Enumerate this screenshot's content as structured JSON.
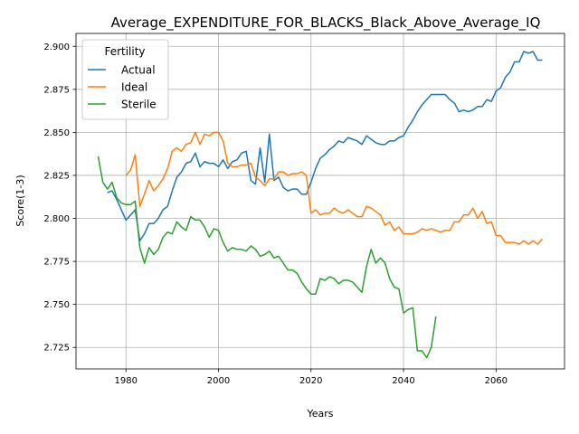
{
  "chart_data": {
    "type": "line",
    "title": "Average_EXPENDITURE_FOR_BLACKS_Black_Above_Average_IQ",
    "xlabel": "Years",
    "ylabel": "Score(1-3)",
    "xlim": [
      1969.2,
      2074.8
    ],
    "ylim": [
      2.7125,
      2.9075
    ],
    "x_ticks": [
      "1980",
      "2000",
      "2020",
      "2040",
      "2060"
    ],
    "x_tick_values": [
      1980,
      2000,
      2020,
      2040,
      2060
    ],
    "y_ticks": [
      "2.725",
      "2.750",
      "2.775",
      "2.800",
      "2.825",
      "2.850",
      "2.875",
      "2.900"
    ],
    "y_tick_values": [
      2.725,
      2.75,
      2.775,
      2.8,
      2.825,
      2.85,
      2.875,
      2.9
    ],
    "grid": true,
    "legend": {
      "title": "Fertility",
      "position": "upper-left"
    },
    "series": [
      {
        "name": "Actual",
        "color": "#1f77b4",
        "points": [
          [
            1976,
            2.815
          ],
          [
            1977,
            2.816
          ],
          [
            1978,
            2.811
          ],
          [
            1979,
            2.805
          ],
          [
            1980,
            2.799
          ],
          [
            1981,
            2.802
          ],
          [
            1982,
            2.805
          ],
          [
            1983,
            2.787
          ],
          [
            1984,
            2.791
          ],
          [
            1985,
            2.797
          ],
          [
            1986,
            2.797
          ],
          [
            1987,
            2.8
          ],
          [
            1988,
            2.805
          ],
          [
            1989,
            2.807
          ],
          [
            1990,
            2.816
          ],
          [
            1991,
            2.824
          ],
          [
            1992,
            2.827
          ],
          [
            1993,
            2.832
          ],
          [
            1994,
            2.833
          ],
          [
            1995,
            2.838
          ],
          [
            1996,
            2.83
          ],
          [
            1997,
            2.833
          ],
          [
            1998,
            2.832
          ],
          [
            1999,
            2.832
          ],
          [
            2000,
            2.83
          ],
          [
            2001,
            2.834
          ],
          [
            2002,
            2.829
          ],
          [
            2003,
            2.833
          ],
          [
            2004,
            2.834
          ],
          [
            2005,
            2.838
          ],
          [
            2006,
            2.839
          ],
          [
            2007,
            2.822
          ],
          [
            2008,
            2.82
          ],
          [
            2009,
            2.841
          ],
          [
            2010,
            2.821
          ],
          [
            2011,
            2.849
          ],
          [
            2012,
            2.822
          ],
          [
            2013,
            2.824
          ],
          [
            2014,
            2.818
          ],
          [
            2015,
            2.816
          ],
          [
            2016,
            2.817
          ],
          [
            2017,
            2.817
          ],
          [
            2018,
            2.814
          ],
          [
            2019,
            2.814
          ],
          [
            2020,
            2.821
          ],
          [
            2021,
            2.829
          ],
          [
            2022,
            2.835
          ],
          [
            2023,
            2.837
          ],
          [
            2024,
            2.84
          ],
          [
            2025,
            2.842
          ],
          [
            2026,
            2.845
          ],
          [
            2027,
            2.844
          ],
          [
            2028,
            2.847
          ],
          [
            2029,
            2.846
          ],
          [
            2030,
            2.845
          ],
          [
            2031,
            2.843
          ],
          [
            2032,
            2.848
          ],
          [
            2033,
            2.846
          ],
          [
            2034,
            2.844
          ],
          [
            2035,
            2.843
          ],
          [
            2036,
            2.843
          ],
          [
            2037,
            2.845
          ],
          [
            2038,
            2.845
          ],
          [
            2039,
            2.847
          ],
          [
            2040,
            2.848
          ],
          [
            2041,
            2.853
          ],
          [
            2042,
            2.857
          ],
          [
            2043,
            2.862
          ],
          [
            2044,
            2.866
          ],
          [
            2045,
            2.869
          ],
          [
            2046,
            2.872
          ],
          [
            2047,
            2.872
          ],
          [
            2048,
            2.872
          ],
          [
            2049,
            2.872
          ],
          [
            2050,
            2.869
          ],
          [
            2051,
            2.867
          ],
          [
            2052,
            2.862
          ],
          [
            2053,
            2.863
          ],
          [
            2054,
            2.862
          ],
          [
            2055,
            2.863
          ],
          [
            2056,
            2.865
          ],
          [
            2057,
            2.865
          ],
          [
            2058,
            2.869
          ],
          [
            2059,
            2.868
          ],
          [
            2060,
            2.874
          ],
          [
            2061,
            2.876
          ],
          [
            2062,
            2.882
          ],
          [
            2063,
            2.885
          ],
          [
            2064,
            2.891
          ],
          [
            2065,
            2.891
          ],
          [
            2066,
            2.897
          ],
          [
            2067,
            2.896
          ],
          [
            2068,
            2.897
          ],
          [
            2069,
            2.892
          ],
          [
            2070,
            2.892
          ]
        ]
      },
      {
        "name": "Ideal",
        "color": "#ff7f0e",
        "points": [
          [
            1980,
            2.825
          ],
          [
            1981,
            2.828
          ],
          [
            1982,
            2.837
          ],
          [
            1983,
            2.807
          ],
          [
            1984,
            2.814
          ],
          [
            1985,
            2.822
          ],
          [
            1986,
            2.816
          ],
          [
            1987,
            2.819
          ],
          [
            1988,
            2.823
          ],
          [
            1989,
            2.829
          ],
          [
            1990,
            2.839
          ],
          [
            1991,
            2.841
          ],
          [
            1992,
            2.839
          ],
          [
            1993,
            2.843
          ],
          [
            1994,
            2.844
          ],
          [
            1995,
            2.85
          ],
          [
            1996,
            2.843
          ],
          [
            1997,
            2.849
          ],
          [
            1998,
            2.848
          ],
          [
            1999,
            2.85
          ],
          [
            2000,
            2.85
          ],
          [
            2001,
            2.845
          ],
          [
            2002,
            2.832
          ],
          [
            2003,
            2.83
          ],
          [
            2004,
            2.83
          ],
          [
            2005,
            2.831
          ],
          [
            2006,
            2.831
          ],
          [
            2007,
            2.832
          ],
          [
            2008,
            2.824
          ],
          [
            2009,
            2.822
          ],
          [
            2010,
            2.819
          ],
          [
            2011,
            2.823
          ],
          [
            2012,
            2.823
          ],
          [
            2013,
            2.827
          ],
          [
            2014,
            2.827
          ],
          [
            2015,
            2.825
          ],
          [
            2016,
            2.826
          ],
          [
            2017,
            2.826
          ],
          [
            2018,
            2.827
          ],
          [
            2019,
            2.825
          ],
          [
            2020,
            2.803
          ],
          [
            2021,
            2.805
          ],
          [
            2022,
            2.802
          ],
          [
            2023,
            2.803
          ],
          [
            2024,
            2.803
          ],
          [
            2025,
            2.806
          ],
          [
            2026,
            2.804
          ],
          [
            2027,
            2.803
          ],
          [
            2028,
            2.805
          ],
          [
            2029,
            2.803
          ],
          [
            2030,
            2.801
          ],
          [
            2031,
            2.801
          ],
          [
            2032,
            2.807
          ],
          [
            2033,
            2.806
          ],
          [
            2034,
            2.804
          ],
          [
            2035,
            2.802
          ],
          [
            2036,
            2.796
          ],
          [
            2037,
            2.798
          ],
          [
            2038,
            2.793
          ],
          [
            2039,
            2.795
          ],
          [
            2040,
            2.791
          ],
          [
            2041,
            2.791
          ],
          [
            2042,
            2.791
          ],
          [
            2043,
            2.792
          ],
          [
            2044,
            2.794
          ],
          [
            2045,
            2.793
          ],
          [
            2046,
            2.794
          ],
          [
            2047,
            2.793
          ],
          [
            2048,
            2.792
          ],
          [
            2049,
            2.793
          ],
          [
            2050,
            2.793
          ],
          [
            2051,
            2.798
          ],
          [
            2052,
            2.798
          ],
          [
            2053,
            2.802
          ],
          [
            2054,
            2.802
          ],
          [
            2055,
            2.806
          ],
          [
            2056,
            2.8
          ],
          [
            2057,
            2.804
          ],
          [
            2058,
            2.797
          ],
          [
            2059,
            2.798
          ],
          [
            2060,
            2.79
          ],
          [
            2061,
            2.79
          ],
          [
            2062,
            2.786
          ],
          [
            2063,
            2.786
          ],
          [
            2064,
            2.786
          ],
          [
            2065,
            2.785
          ],
          [
            2066,
            2.787
          ],
          [
            2067,
            2.785
          ],
          [
            2068,
            2.787
          ],
          [
            2069,
            2.785
          ],
          [
            2070,
            2.788
          ]
        ]
      },
      {
        "name": "Sterile",
        "color": "#2ca02c",
        "points": [
          [
            1974,
            2.836
          ],
          [
            1975,
            2.821
          ],
          [
            1976,
            2.817
          ],
          [
            1977,
            2.821
          ],
          [
            1978,
            2.812
          ],
          [
            1979,
            2.809
          ],
          [
            1980,
            2.808
          ],
          [
            1981,
            2.808
          ],
          [
            1982,
            2.81
          ],
          [
            1983,
            2.783
          ],
          [
            1984,
            2.774
          ],
          [
            1985,
            2.783
          ],
          [
            1986,
            2.779
          ],
          [
            1987,
            2.782
          ],
          [
            1988,
            2.789
          ],
          [
            1989,
            2.792
          ],
          [
            1990,
            2.791
          ],
          [
            1991,
            2.798
          ],
          [
            1992,
            2.795
          ],
          [
            1993,
            2.793
          ],
          [
            1994,
            2.801
          ],
          [
            1995,
            2.799
          ],
          [
            1996,
            2.799
          ],
          [
            1997,
            2.795
          ],
          [
            1998,
            2.789
          ],
          [
            1999,
            2.794
          ],
          [
            2000,
            2.793
          ],
          [
            2001,
            2.786
          ],
          [
            2002,
            2.781
          ],
          [
            2003,
            2.783
          ],
          [
            2004,
            2.782
          ],
          [
            2005,
            2.782
          ],
          [
            2006,
            2.781
          ],
          [
            2007,
            2.784
          ],
          [
            2008,
            2.782
          ],
          [
            2009,
            2.778
          ],
          [
            2010,
            2.779
          ],
          [
            2011,
            2.781
          ],
          [
            2012,
            2.777
          ],
          [
            2013,
            2.778
          ],
          [
            2014,
            2.774
          ],
          [
            2015,
            2.77
          ],
          [
            2016,
            2.77
          ],
          [
            2017,
            2.768
          ],
          [
            2018,
            2.763
          ],
          [
            2019,
            2.759
          ],
          [
            2020,
            2.756
          ],
          [
            2021,
            2.756
          ],
          [
            2022,
            2.765
          ],
          [
            2023,
            2.764
          ],
          [
            2024,
            2.766
          ],
          [
            2025,
            2.765
          ],
          [
            2026,
            2.762
          ],
          [
            2027,
            2.764
          ],
          [
            2028,
            2.764
          ],
          [
            2029,
            2.763
          ],
          [
            2030,
            2.76
          ],
          [
            2031,
            2.757
          ],
          [
            2032,
            2.772
          ],
          [
            2033,
            2.782
          ],
          [
            2034,
            2.774
          ],
          [
            2035,
            2.777
          ],
          [
            2036,
            2.774
          ],
          [
            2037,
            2.765
          ],
          [
            2038,
            2.76
          ],
          [
            2039,
            2.759
          ],
          [
            2040,
            2.745
          ],
          [
            2041,
            2.747
          ],
          [
            2042,
            2.748
          ],
          [
            2043,
            2.723
          ],
          [
            2044,
            2.723
          ],
          [
            2045,
            2.719
          ],
          [
            2046,
            2.725
          ],
          [
            2047,
            2.743
          ]
        ]
      }
    ]
  }
}
